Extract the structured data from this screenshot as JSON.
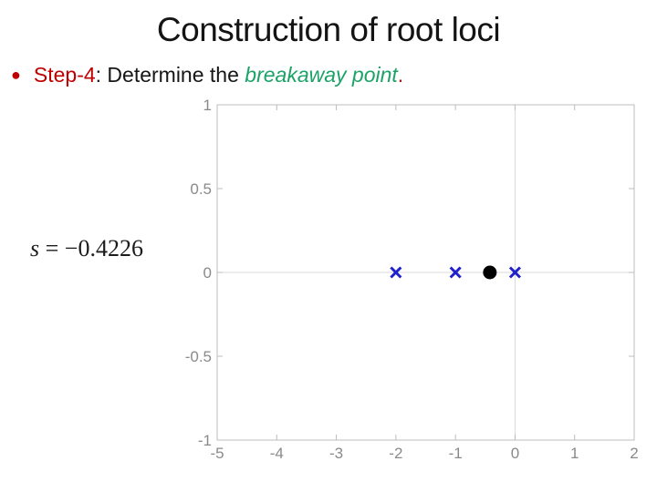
{
  "title": "Construction of root loci",
  "bullet": {
    "marker": "●",
    "step": "Step-4",
    "middle": ": Determine the ",
    "highlight": "breakaway point",
    "end": "."
  },
  "formula": {
    "variable": "s",
    "rest": " = −0.4226"
  },
  "chart_data": {
    "type": "scatter",
    "title": "",
    "xlabel": "",
    "ylabel": "",
    "xlim": [
      -5,
      2
    ],
    "ylim": [
      -1,
      1
    ],
    "xticks": [
      -5,
      -4,
      -3,
      -2,
      -1,
      0,
      1,
      2
    ],
    "xtick_labels": [
      "-5",
      "-4",
      "-3",
      "-2",
      "-1",
      "0",
      "1",
      "2"
    ],
    "yticks": [
      1,
      0.5,
      0,
      -0.5,
      -1
    ],
    "ytick_labels": [
      "1",
      "0.5",
      "0",
      "-0.5",
      "-1"
    ],
    "grid_x": [
      0
    ],
    "grid_y": [
      0
    ],
    "legend": "none",
    "series": [
      {
        "name": "open-loop-poles",
        "marker": "x",
        "color": "#2020cc",
        "points": [
          [
            -2,
            0
          ],
          [
            -1,
            0
          ],
          [
            0,
            0
          ]
        ]
      },
      {
        "name": "breakaway-point",
        "marker": "dot",
        "color": "#000000",
        "points": [
          [
            -0.4226,
            0
          ]
        ]
      }
    ],
    "colors": {
      "box": "#bcbcbc",
      "grid": "#d9d9d9",
      "tick_label": "#8a8a8a"
    }
  }
}
